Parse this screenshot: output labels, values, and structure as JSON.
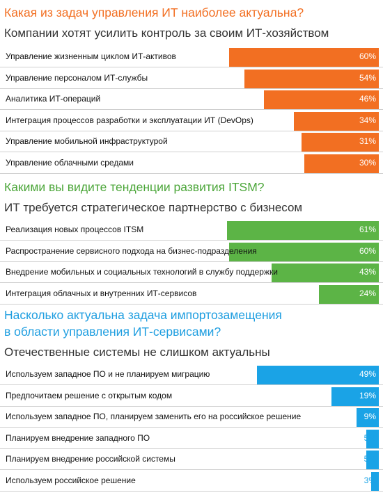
{
  "chart_data": [
    {
      "type": "bar",
      "title": "Какая из задач управления ИТ наиболее актуальна?",
      "subtitle": "Компании хотят усилить контроль за своим ИТ-хозяйством",
      "color": "#f26f22",
      "title_color": "#f26f22",
      "categories": [
        "Управление жизненным циклом ИТ-активов",
        "Управление персоналом ИТ-службы",
        "Аналитика ИТ-операций",
        "Интеграция процессов разработки и эксплуатации ИТ (DevOps)",
        "Управление мобильной инфраструктурой",
        "Управление облачными средами"
      ],
      "values": [
        60,
        54,
        46,
        34,
        31,
        30
      ],
      "value_labels": [
        "60%",
        "54%",
        "46%",
        "34%",
        "31%",
        "30%"
      ]
    },
    {
      "type": "bar",
      "title": "Какими вы видите тенденции развития ITSM?",
      "subtitle": "ИТ требуется стратегическое партнерство с бизнесом",
      "color": "#5cb446",
      "title_color": "#4ca63a",
      "categories": [
        "Реализация новых процессов ITSM",
        "Распространение сервисного подхода на бизнес-подразделения",
        "Внедрение мобильных и социальных технологий в службу поддержки",
        "Интеграция облачных и внутренних ИТ-сервисов"
      ],
      "values": [
        61,
        60,
        43,
        24
      ],
      "value_labels": [
        "61%",
        "60%",
        "43%",
        "24%"
      ]
    },
    {
      "type": "bar",
      "title": "Насколько актуальна задача импортозамещения в области управления ИТ-сервисами?",
      "title_lines": [
        "Насколько актуальна задача импортозамещения",
        "в области управления ИТ-сервисами?"
      ],
      "subtitle": "Отечественные системы не слишком актуальны",
      "color": "#1aa3e6",
      "title_color": "#1f9ee0",
      "categories": [
        "Используем западное ПО и не планируем миграцию",
        "Предпочитаем решение с открытым кодом",
        "Используем западное ПО, планируем заменить его на российское решение",
        "Планируем внедрение западного ПО",
        "Планируем внедрение российской системы",
        "Используем российское решение"
      ],
      "values": [
        49,
        19,
        9,
        5,
        5,
        3
      ],
      "value_labels": [
        "49%",
        "19%",
        "9%",
        "5%",
        "5%",
        "3%"
      ]
    }
  ]
}
